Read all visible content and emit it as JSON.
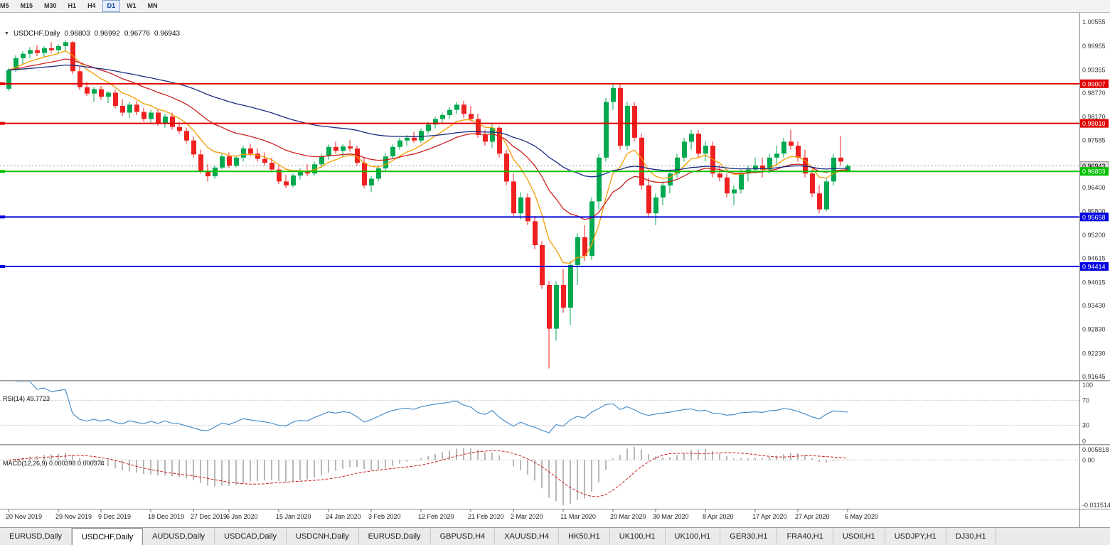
{
  "toolbar": {
    "timeframes": [
      "M5",
      "M15",
      "M30",
      "H1",
      "H4",
      "D1",
      "W1",
      "MN"
    ],
    "active": "D1"
  },
  "chart_header": {
    "symbol": "USDCHF,Daily",
    "open": "0.96803",
    "high": "0.96992",
    "low": "0.96776",
    "close": "0.96943"
  },
  "tabs": {
    "items": [
      "EURUSD,Daily",
      "USDCHF,Daily",
      "AUDUSD,Daily",
      "USDCAD,Daily",
      "USDCNH,Daily",
      "EURUSD,Daily",
      "GBPUSD,H4",
      "XAUUSD,H4",
      "HK50,H1",
      "UK100,H1",
      "UK100,H1",
      "GER30,H1",
      "FRA40,H1",
      "USOil,H1",
      "USDJPY,H1",
      "DJ30,H1"
    ],
    "active_index": 1
  },
  "chart_data": {
    "type": "candlestick",
    "symbol": "USDCHF",
    "timeframe": "Daily",
    "price_scale": {
      "max": 1.0079,
      "min": 0.91556
    },
    "y_axis_ticks": [
      "1.00555",
      "0.99955",
      "0.99355",
      "0.98770",
      "0.98170",
      "0.97585",
      "0.96985",
      "0.96400",
      "0.95800",
      "0.95200",
      "0.94615",
      "0.94015",
      "0.93430",
      "0.92830",
      "0.92230",
      "0.91645"
    ],
    "x_labels": [
      {
        "text": "20 Nov 2019",
        "index": 0
      },
      {
        "text": "29 Nov 2019",
        "index": 7
      },
      {
        "text": "9 Dec 2019",
        "index": 13
      },
      {
        "text": "18 Dec 2019",
        "index": 20
      },
      {
        "text": "27 Dec 2019",
        "index": 26
      },
      {
        "text": "6 Jan 2020",
        "index": 31
      },
      {
        "text": "15 Jan 2020",
        "index": 38
      },
      {
        "text": "24 Jan 2020",
        "index": 45
      },
      {
        "text": "3 Feb 2020",
        "index": 51
      },
      {
        "text": "12 Feb 2020",
        "index": 58
      },
      {
        "text": "21 Feb 2020",
        "index": 65
      },
      {
        "text": "2 Mar 2020",
        "index": 71
      },
      {
        "text": "11 Mar 2020",
        "index": 78
      },
      {
        "text": "20 Mar 2020",
        "index": 85
      },
      {
        "text": "30 Mar 2020",
        "index": 91
      },
      {
        "text": "8 Apr 2020",
        "index": 98
      },
      {
        "text": "17 Apr 2020",
        "index": 105
      },
      {
        "text": "27 Apr 2020",
        "index": 111
      },
      {
        "text": "6 May 2020",
        "index": 118
      }
    ],
    "colors": {
      "up": "#00a94f",
      "down": "#ef2020",
      "background": "#ffffff",
      "axis_text": "#3a3a3a"
    },
    "moving_averages": [
      {
        "period": 8,
        "color": "#f59b00"
      },
      {
        "period": 21,
        "color": "#cc2020"
      },
      {
        "period": 55,
        "color": "#1a2a80"
      }
    ],
    "h_lines": [
      {
        "price": 0.99007,
        "label": "0.99007",
        "color": "#e00000",
        "width": 2
      },
      {
        "price": 0.9801,
        "label": "0.98010",
        "color": "#e00000",
        "width": 2
      },
      {
        "price": 0.96803,
        "label": "0.96803",
        "color": "#00c000",
        "width": 2
      },
      {
        "price": 0.95658,
        "label": "0.95658",
        "color": "#0000e0",
        "width": 2
      },
      {
        "price": 0.94414,
        "label": "0.94414",
        "color": "#0000e0",
        "width": 2
      }
    ],
    "current_price": {
      "value": 0.96943,
      "label": "0.96943"
    },
    "indicators": {
      "rsi": {
        "label": "RSI(14) 49.7723",
        "period": 14,
        "levels": [
          70,
          30
        ],
        "axis_labels": [
          "100",
          "70",
          "30",
          "0"
        ],
        "color": "#3f86c6"
      },
      "macd": {
        "label": "MACD(12,26,9) 0.000398 0.000374",
        "fast": 12,
        "slow": 26,
        "signal": 9,
        "axis_labels": [
          "0.005818",
          "0.00",
          "-0.011514"
        ],
        "hist_color": "#a6a6a6",
        "signal_color": "#cc2020"
      }
    },
    "candles": [
      [
        0.9888,
        0.994,
        0.9883,
        0.9935
      ],
      [
        0.9935,
        0.9972,
        0.993,
        0.9965
      ],
      [
        0.9965,
        0.9982,
        0.9948,
        0.9976
      ],
      [
        0.9976,
        0.9993,
        0.9965,
        0.9985
      ],
      [
        0.9985,
        0.9998,
        0.997,
        0.9978
      ],
      [
        0.9978,
        0.9996,
        0.9968,
        0.999
      ],
      [
        0.999,
        1.0005,
        0.9978,
        0.9985
      ],
      [
        0.9985,
        1.0,
        0.9975,
        0.9995
      ],
      [
        0.9995,
        1.001,
        0.9982,
        1.0005
      ],
      [
        1.0005,
        1.0008,
        0.9925,
        0.9932
      ],
      [
        0.9932,
        0.9945,
        0.9885,
        0.9892
      ],
      [
        0.9892,
        0.9905,
        0.987,
        0.9876
      ],
      [
        0.9876,
        0.9892,
        0.9855,
        0.9887
      ],
      [
        0.9887,
        0.9895,
        0.986,
        0.9868
      ],
      [
        0.9868,
        0.9882,
        0.9852,
        0.9878
      ],
      [
        0.9878,
        0.9885,
        0.9838,
        0.9845
      ],
      [
        0.9845,
        0.9862,
        0.982,
        0.9828
      ],
      [
        0.9828,
        0.9855,
        0.9815,
        0.9848
      ],
      [
        0.9848,
        0.9858,
        0.9822,
        0.983
      ],
      [
        0.983,
        0.984,
        0.9805,
        0.9812
      ],
      [
        0.9812,
        0.9835,
        0.9802,
        0.9828
      ],
      [
        0.9828,
        0.9838,
        0.9795,
        0.9802
      ],
      [
        0.9802,
        0.9825,
        0.979,
        0.9818
      ],
      [
        0.9818,
        0.9828,
        0.9785,
        0.9792
      ],
      [
        0.9792,
        0.9805,
        0.9775,
        0.9782
      ],
      [
        0.9782,
        0.979,
        0.975,
        0.9758
      ],
      [
        0.9758,
        0.9768,
        0.9715,
        0.9723
      ],
      [
        0.9723,
        0.9735,
        0.9675,
        0.9682
      ],
      [
        0.9682,
        0.9698,
        0.9655,
        0.9668
      ],
      [
        0.9668,
        0.9695,
        0.9662,
        0.969
      ],
      [
        0.969,
        0.9725,
        0.9685,
        0.9718
      ],
      [
        0.9718,
        0.9728,
        0.9688,
        0.9695
      ],
      [
        0.9695,
        0.972,
        0.969,
        0.9715
      ],
      [
        0.9715,
        0.9745,
        0.9705,
        0.9738
      ],
      [
        0.9738,
        0.975,
        0.9718,
        0.9725
      ],
      [
        0.9725,
        0.9738,
        0.9705,
        0.9712
      ],
      [
        0.9712,
        0.9728,
        0.9695,
        0.9702
      ],
      [
        0.9702,
        0.9715,
        0.9678,
        0.9685
      ],
      [
        0.9685,
        0.9695,
        0.9648,
        0.9655
      ],
      [
        0.9655,
        0.9672,
        0.9638,
        0.9645
      ],
      [
        0.9645,
        0.9675,
        0.964,
        0.967
      ],
      [
        0.967,
        0.9688,
        0.966,
        0.9682
      ],
      [
        0.9682,
        0.9698,
        0.9668,
        0.9675
      ],
      [
        0.9675,
        0.9705,
        0.967,
        0.9698
      ],
      [
        0.9698,
        0.9725,
        0.9688,
        0.9718
      ],
      [
        0.9718,
        0.9748,
        0.971,
        0.9742
      ],
      [
        0.9742,
        0.9755,
        0.9725,
        0.9732
      ],
      [
        0.9732,
        0.9748,
        0.9718,
        0.9743
      ],
      [
        0.9743,
        0.976,
        0.973,
        0.9738
      ],
      [
        0.9738,
        0.9745,
        0.9695,
        0.9702
      ],
      [
        0.9702,
        0.9715,
        0.9638,
        0.9645
      ],
      [
        0.9645,
        0.9668,
        0.9628,
        0.9662
      ],
      [
        0.9662,
        0.9695,
        0.9655,
        0.9688
      ],
      [
        0.9688,
        0.9725,
        0.9682,
        0.9718
      ],
      [
        0.9718,
        0.9748,
        0.9712,
        0.9742
      ],
      [
        0.9742,
        0.9765,
        0.9735,
        0.9758
      ],
      [
        0.9758,
        0.9772,
        0.9745,
        0.9765
      ],
      [
        0.9765,
        0.978,
        0.9752,
        0.9758
      ],
      [
        0.9758,
        0.9788,
        0.9752,
        0.9782
      ],
      [
        0.9782,
        0.9805,
        0.9775,
        0.9798
      ],
      [
        0.9798,
        0.9818,
        0.9788,
        0.9812
      ],
      [
        0.9812,
        0.9828,
        0.9802,
        0.9822
      ],
      [
        0.9822,
        0.9842,
        0.9812,
        0.9835
      ],
      [
        0.9835,
        0.9855,
        0.9825,
        0.9848
      ],
      [
        0.9848,
        0.9858,
        0.9815,
        0.9825
      ],
      [
        0.9825,
        0.9845,
        0.9805,
        0.9812
      ],
      [
        0.9812,
        0.9825,
        0.9765,
        0.9772
      ],
      [
        0.9772,
        0.9785,
        0.9745,
        0.9755
      ],
      [
        0.9755,
        0.9798,
        0.974,
        0.979
      ],
      [
        0.979,
        0.9795,
        0.9715,
        0.9725
      ],
      [
        0.9725,
        0.9735,
        0.9645,
        0.9655
      ],
      [
        0.9655,
        0.9675,
        0.9565,
        0.9575
      ],
      [
        0.9575,
        0.9628,
        0.956,
        0.9615
      ],
      [
        0.9615,
        0.9625,
        0.9545,
        0.9555
      ],
      [
        0.9555,
        0.9568,
        0.9485,
        0.9495
      ],
      [
        0.9495,
        0.9505,
        0.9385,
        0.9395
      ],
      [
        0.9395,
        0.9405,
        0.9185,
        0.9285
      ],
      [
        0.9285,
        0.9405,
        0.9255,
        0.9395
      ],
      [
        0.9395,
        0.9435,
        0.9325,
        0.9338
      ],
      [
        0.9338,
        0.9455,
        0.9295,
        0.9445
      ],
      [
        0.9445,
        0.9525,
        0.9395,
        0.9515
      ],
      [
        0.9515,
        0.9545,
        0.9455,
        0.9468
      ],
      [
        0.9468,
        0.9615,
        0.9458,
        0.9605
      ],
      [
        0.9605,
        0.9725,
        0.9585,
        0.9715
      ],
      [
        0.9715,
        0.9865,
        0.9705,
        0.9855
      ],
      [
        0.9855,
        0.9901,
        0.9835,
        0.989
      ],
      [
        0.989,
        0.9898,
        0.9735,
        0.9745
      ],
      [
        0.9745,
        0.9855,
        0.9735,
        0.9845
      ],
      [
        0.9845,
        0.9855,
        0.9755,
        0.9765
      ],
      [
        0.9765,
        0.9775,
        0.9635,
        0.9645
      ],
      [
        0.9645,
        0.9665,
        0.9565,
        0.9575
      ],
      [
        0.9575,
        0.9625,
        0.9545,
        0.9615
      ],
      [
        0.9615,
        0.9655,
        0.9595,
        0.9645
      ],
      [
        0.9645,
        0.9685,
        0.9625,
        0.9675
      ],
      [
        0.9675,
        0.9725,
        0.9665,
        0.9715
      ],
      [
        0.9715,
        0.9765,
        0.9705,
        0.9755
      ],
      [
        0.9755,
        0.9785,
        0.9735,
        0.9775
      ],
      [
        0.9775,
        0.9785,
        0.9715,
        0.9725
      ],
      [
        0.9725,
        0.9755,
        0.9705,
        0.9745
      ],
      [
        0.9745,
        0.9755,
        0.9665,
        0.9675
      ],
      [
        0.9675,
        0.9695,
        0.9655,
        0.9665
      ],
      [
        0.9665,
        0.9675,
        0.9615,
        0.9625
      ],
      [
        0.9625,
        0.9645,
        0.9595,
        0.9635
      ],
      [
        0.9635,
        0.9685,
        0.9625,
        0.9675
      ],
      [
        0.9675,
        0.9695,
        0.9655,
        0.9685
      ],
      [
        0.9685,
        0.9715,
        0.9675,
        0.9695
      ],
      [
        0.9695,
        0.9715,
        0.9665,
        0.9685
      ],
      [
        0.9685,
        0.9725,
        0.9675,
        0.9715
      ],
      [
        0.9715,
        0.9745,
        0.9695,
        0.9725
      ],
      [
        0.9725,
        0.9765,
        0.9715,
        0.9755
      ],
      [
        0.9755,
        0.9785,
        0.9735,
        0.9745
      ],
      [
        0.9745,
        0.9755,
        0.9705,
        0.9715
      ],
      [
        0.9715,
        0.9735,
        0.9665,
        0.9675
      ],
      [
        0.9675,
        0.9685,
        0.9615,
        0.9625
      ],
      [
        0.9625,
        0.9645,
        0.9575,
        0.9585
      ],
      [
        0.9585,
        0.9665,
        0.958,
        0.9655
      ],
      [
        0.9655,
        0.9725,
        0.9645,
        0.9715
      ],
      [
        0.9715,
        0.977,
        0.9695,
        0.9705
      ],
      [
        0.96803,
        0.96992,
        0.96776,
        0.96943
      ]
    ]
  }
}
